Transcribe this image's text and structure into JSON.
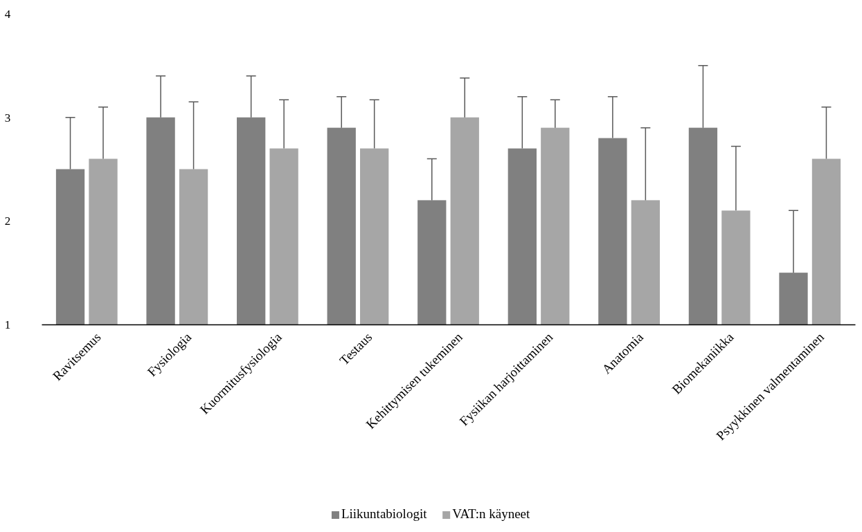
{
  "chart_data": {
    "type": "bar",
    "categories": [
      "Ravitsemus",
      "Fysiologia",
      "Kuormitusfysiologia",
      "Testaus",
      "Kehittymisen tukeminen",
      "Fysiikan harjoittaminen",
      "Anatomia",
      "Biomekaniikka",
      "Psyykkinen valmentaminen"
    ],
    "series": [
      {
        "name": "Liikuntabiologit",
        "color": "#808080",
        "values": [
          2.5,
          3.0,
          3.0,
          2.9,
          2.2,
          2.7,
          2.8,
          2.9,
          1.5
        ],
        "errors": [
          [
            2.5,
            3.0
          ],
          [
            3.0,
            3.4
          ],
          [
            3.0,
            3.4
          ],
          [
            2.9,
            3.2
          ],
          [
            2.2,
            2.6
          ],
          [
            2.7,
            3.2
          ],
          [
            2.8,
            3.2
          ],
          [
            2.9,
            3.5
          ],
          [
            1.5,
            2.1
          ]
        ]
      },
      {
        "name": "VAT:n käyneet",
        "color": "#a6a6a6",
        "values": [
          2.6,
          2.5,
          2.7,
          2.7,
          3.0,
          2.9,
          2.2,
          2.1,
          2.6
        ],
        "errors": [
          [
            2.6,
            3.1
          ],
          [
            2.5,
            3.15
          ],
          [
            2.7,
            3.17
          ],
          [
            2.7,
            3.17
          ],
          [
            3.0,
            3.38
          ],
          [
            2.9,
            3.17
          ],
          [
            2.2,
            2.9
          ],
          [
            2.1,
            2.72
          ],
          [
            2.6,
            3.1
          ]
        ]
      }
    ],
    "ylim": [
      1,
      4
    ],
    "yticks": [
      1,
      2,
      3,
      4
    ],
    "grid": false,
    "legend": "bottom"
  }
}
